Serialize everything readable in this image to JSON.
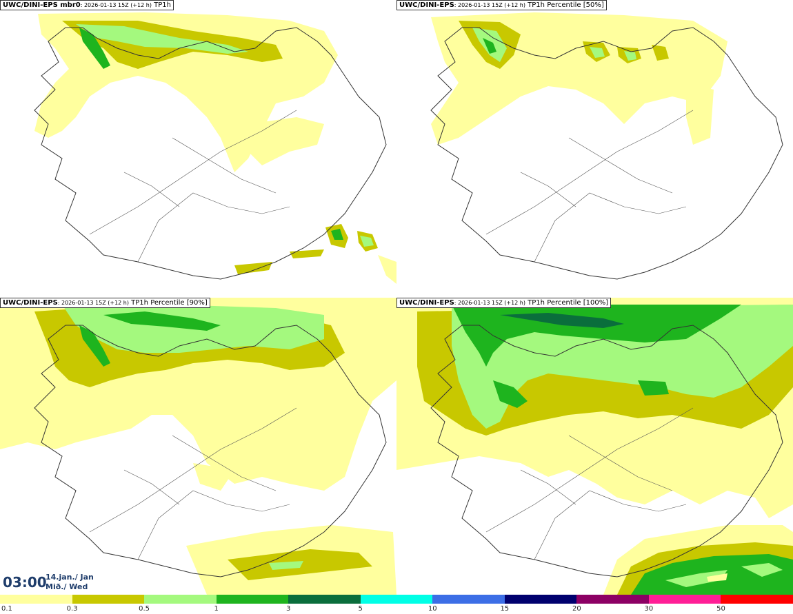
{
  "panels": [
    {
      "model": "UWC/DINI-EPS mbr0",
      "meta": ": 2026-01-13 15Z (+12 h)",
      "field": "TP1h"
    },
    {
      "model": "UWC/DINI-EPS",
      "meta": ": 2026-01-13 15Z (+12 h)",
      "field": "TP1h Percentile [50%]"
    },
    {
      "model": "UWC/DINI-EPS",
      "meta": ": 2026-01-13 15Z (+12 h)",
      "field": "TP1h Percentile [90%]"
    },
    {
      "model": "UWC/DINI-EPS",
      "meta": ": 2026-01-13 15Z (+12 h)",
      "field": "TP1h Percentile [100%]"
    }
  ],
  "time": {
    "hour": "03:00",
    "date": "14.jan./ Jan",
    "weekday": "Mið./ Wed"
  },
  "legend": {
    "colors": [
      "#ffff9e",
      "#c8c800",
      "#a4f97e",
      "#1eb41e",
      "#0a6e3c",
      "#00ffe6",
      "#3c6ee6",
      "#00006e",
      "#8c0064",
      "#ff1e96",
      "#ff0000"
    ],
    "labels": [
      "0.1",
      "0.3",
      "0.5",
      "1",
      "3",
      "5",
      "10",
      "15",
      "20",
      "30",
      "50"
    ]
  }
}
